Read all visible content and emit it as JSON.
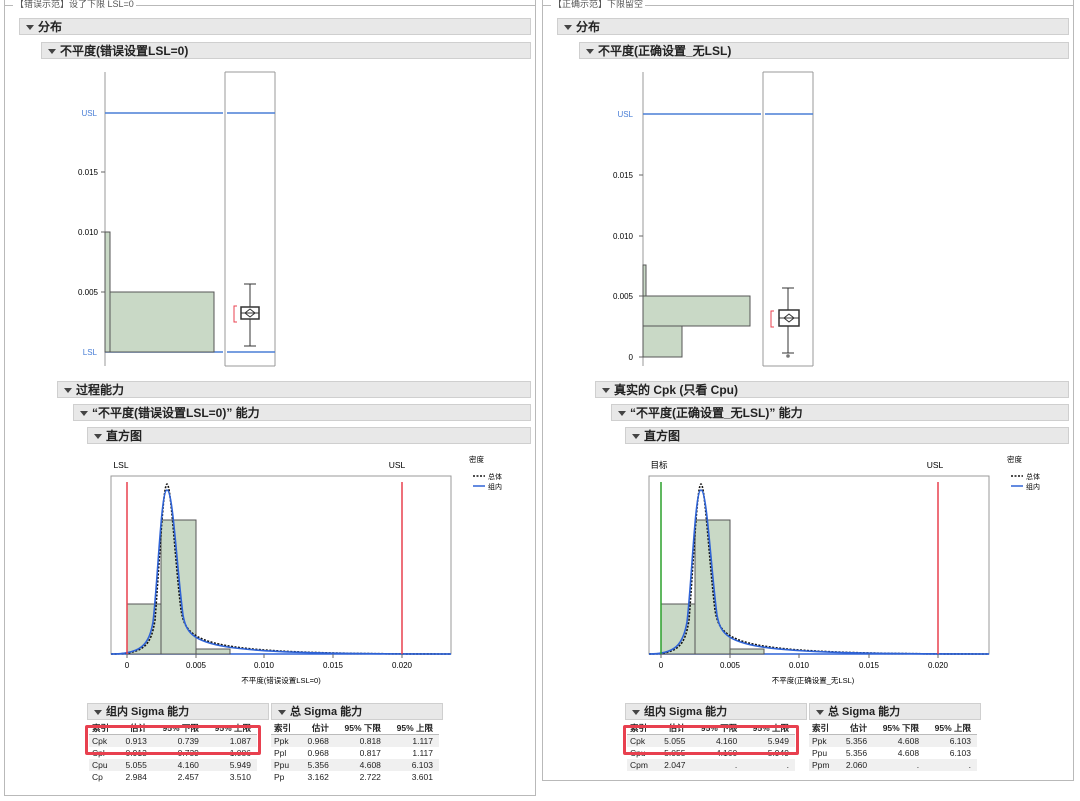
{
  "left": {
    "panel_title": "【错误示范】设了下限 LSL=0",
    "dist_header": "分布",
    "var_header": "不平度(错误设置LSL=0)",
    "hist_y_ticks": [
      "0.005",
      "0.010",
      "0.015"
    ],
    "usl_label": "USL",
    "lsl_label": "LSL",
    "cap_header": "过程能力",
    "cap_var_header": "“不平度(错误设置LSL=0)” 能力",
    "histogram_header": "直方图",
    "spec_left": "LSL",
    "spec_right": "USL",
    "x_ticks": [
      "0",
      "0.005",
      "0.010",
      "0.015",
      "0.020"
    ],
    "x_label": "不平度(错误设置LSL=0)",
    "legend_title": "密度",
    "legend_overall": "总体",
    "legend_within": "组内",
    "within_title": "组内 Sigma 能力",
    "overall_title": "总 Sigma 能力",
    "cols": [
      "索引",
      "估计",
      "95% 下限",
      "95% 上限"
    ],
    "within_rows": [
      [
        "Cpk",
        "0.913",
        "0.739",
        "1.087"
      ],
      [
        "Cpl",
        "0.913",
        "0.739",
        "1.086"
      ],
      [
        "Cpu",
        "5.055",
        "4.160",
        "5.949"
      ],
      [
        "Cp",
        "2.984",
        "2.457",
        "3.510"
      ]
    ],
    "overall_rows": [
      [
        "Ppk",
        "0.968",
        "0.818",
        "1.117"
      ],
      [
        "Ppl",
        "0.968",
        "0.817",
        "1.117"
      ],
      [
        "Ppu",
        "5.356",
        "4.608",
        "6.103"
      ],
      [
        "Pp",
        "3.162",
        "2.722",
        "3.601"
      ]
    ]
  },
  "right": {
    "panel_title": "【正确示范】下限留空",
    "dist_header": "分布",
    "var_header": "不平度(正确设置_无LSL)",
    "hist_y_ticks": [
      "0",
      "0.005",
      "0.010",
      "0.015"
    ],
    "usl_label": "USL",
    "cap_header": "真实的 Cpk (只看 Cpu)",
    "cap_var_header": "“不平度(正确设置_无LSL)” 能力",
    "histogram_header": "直方图",
    "spec_left": "目标",
    "spec_right": "USL",
    "x_ticks": [
      "0",
      "0.005",
      "0.010",
      "0.015",
      "0.020"
    ],
    "x_label": "不平度(正确设置_无LSL)",
    "legend_title": "密度",
    "legend_overall": "总体",
    "legend_within": "组内",
    "within_title": "组内 Sigma 能力",
    "overall_title": "总 Sigma 能力",
    "cols": [
      "索引",
      "估计",
      "95% 下限",
      "95% 上限"
    ],
    "within_rows": [
      [
        "Cpk",
        "5.055",
        "4.160",
        "5.949"
      ],
      [
        "Cpu",
        "5.055",
        "4.160",
        "5.949"
      ],
      [
        "Cpm",
        "2.047",
        ".",
        "."
      ]
    ],
    "overall_rows": [
      [
        "Ppk",
        "5.356",
        "4.608",
        "6.103"
      ],
      [
        "Ppu",
        "5.356",
        "4.608",
        "6.103"
      ],
      [
        "Ppm",
        "2.060",
        ".",
        "."
      ]
    ]
  },
  "colors": {
    "spec_line": "#e8404f",
    "target_line": "#2ca02c",
    "hist_fill": "#c9d9c6",
    "within_curve": "#2f63d6",
    "limit_blue": "#4a7fd6"
  }
}
